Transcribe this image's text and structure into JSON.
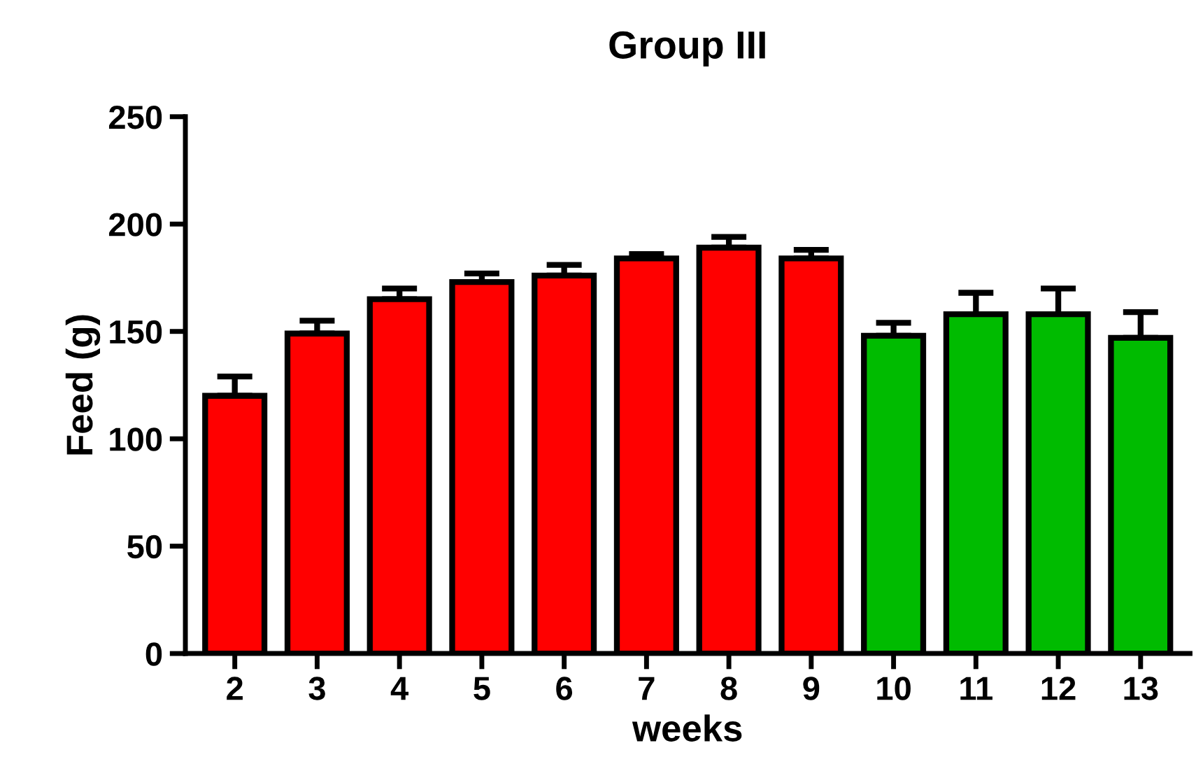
{
  "chart_data": {
    "type": "bar",
    "title": "Group III",
    "xlabel": "weeks",
    "ylabel": "Feed (g)",
    "categories": [
      "2",
      "3",
      "4",
      "5",
      "6",
      "7",
      "8",
      "9",
      "10",
      "11",
      "12",
      "13"
    ],
    "values": [
      120,
      149,
      165,
      173,
      176,
      184,
      189,
      184,
      148,
      158,
      158,
      147
    ],
    "errors": [
      [
        120,
        129
      ],
      [
        149,
        155
      ],
      [
        165,
        170
      ],
      [
        173,
        177
      ],
      [
        176,
        181
      ],
      [
        184,
        186
      ],
      [
        189,
        194
      ],
      [
        184,
        188
      ],
      [
        148,
        154
      ],
      [
        158,
        168
      ],
      [
        158,
        170
      ],
      [
        147,
        159
      ]
    ],
    "colors": [
      "#ff0000",
      "#ff0000",
      "#ff0000",
      "#ff0000",
      "#ff0000",
      "#ff0000",
      "#ff0000",
      "#ff0000",
      "#00bb00",
      "#00bb00",
      "#00bb00",
      "#00bb00"
    ],
    "ylim": [
      0,
      250
    ],
    "yticks": [
      0,
      50,
      100,
      150,
      200,
      250
    ],
    "grid": false
  }
}
